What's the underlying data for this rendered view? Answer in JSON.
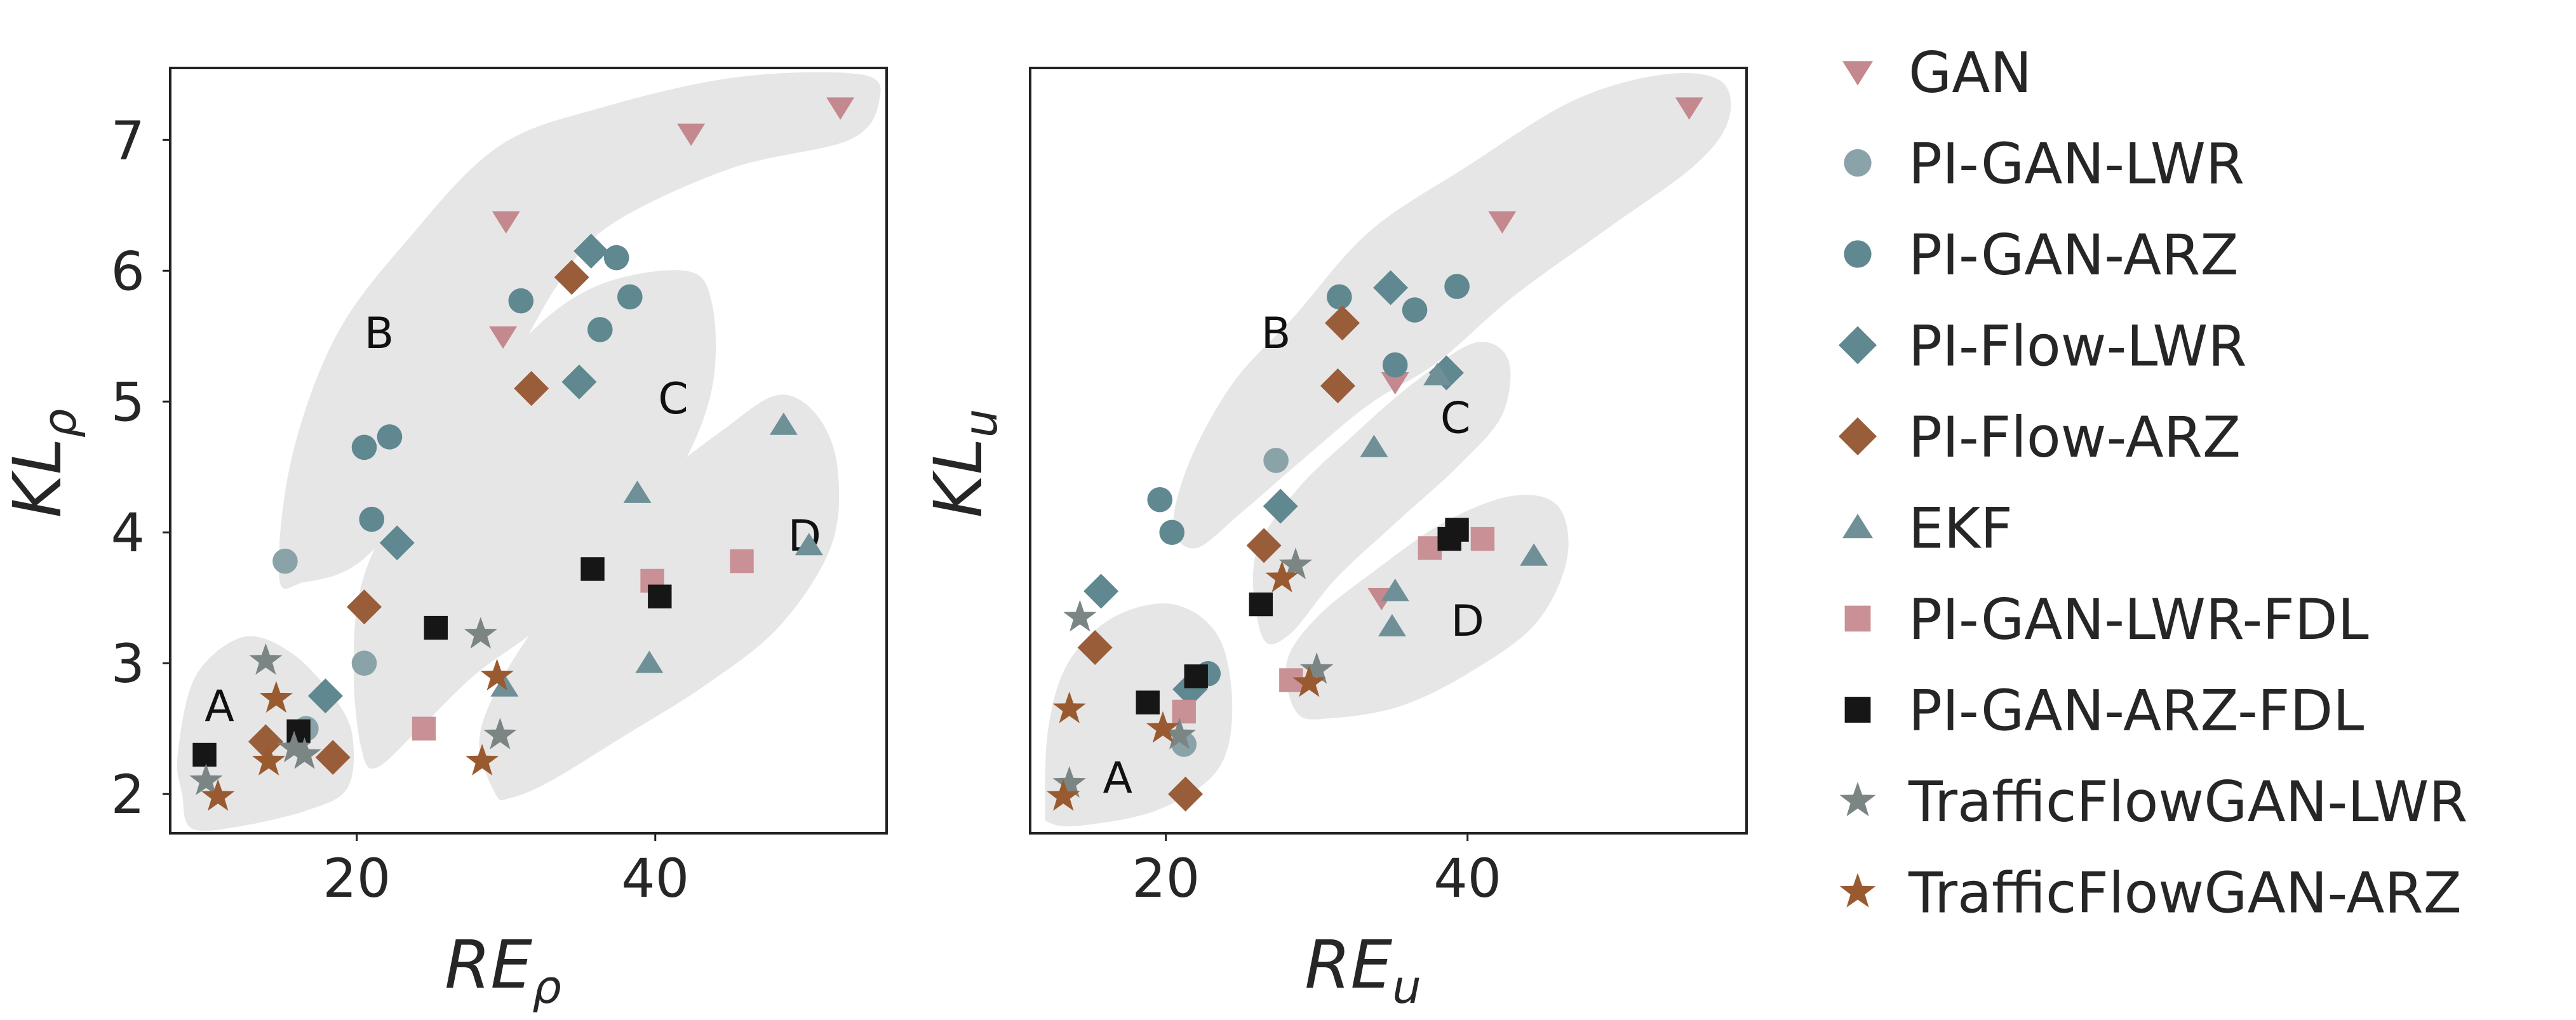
{
  "series_styles": [
    {
      "name": "GAN",
      "color": "#c4888f",
      "marker": "triangle-down"
    },
    {
      "name": "PI-GAN-LWR",
      "color": "#8aa3a8",
      "marker": "circle"
    },
    {
      "name": "PI-GAN-ARZ",
      "color": "#5f8890",
      "marker": "circle"
    },
    {
      "name": "PI-Flow-LWR",
      "color": "#5f8890",
      "marker": "diamond"
    },
    {
      "name": "PI-Flow-ARZ",
      "color": "#9a5d3a",
      "marker": "diamond"
    },
    {
      "name": "EKF",
      "color": "#6f9097",
      "marker": "triangle-up"
    },
    {
      "name": "PI-GAN-LWR-FDL",
      "color": "#c99096",
      "marker": "square"
    },
    {
      "name": "PI-GAN-ARZ-FDL",
      "color": "#161616",
      "marker": "square"
    },
    {
      "name": "TrafficFlowGAN-LWR",
      "color": "#7a8584",
      "marker": "star"
    },
    {
      "name": "TrafficFlowGAN-ARZ",
      "color": "#9a5a30",
      "marker": "star"
    }
  ],
  "legend": {
    "placement": "right",
    "entries": [
      "GAN",
      "PI-GAN-LWR",
      "PI-GAN-ARZ",
      "PI-Flow-LWR",
      "PI-Flow-ARZ",
      "EKF",
      "PI-GAN-LWR-FDL",
      "PI-GAN-ARZ-FDL",
      "TrafficFlowGAN-LWR",
      "TrafficFlowGAN-ARZ"
    ]
  },
  "chart_data": [
    {
      "type": "scatter",
      "xlabel": {
        "main": "RE",
        "sub": "ρ"
      },
      "ylabel": {
        "main": "KL",
        "sub": "ρ"
      },
      "xlim": [
        7.5,
        55.5
      ],
      "ylim": [
        1.7,
        7.55
      ],
      "xticks": [
        20,
        40
      ],
      "yticks": [
        2,
        3,
        4,
        5,
        6,
        7
      ],
      "grid": false,
      "cluster_labels": [
        {
          "text": "A",
          "x": 10.8,
          "y": 2.65
        },
        {
          "text": "B",
          "x": 21.5,
          "y": 5.5
        },
        {
          "text": "C",
          "x": 41.2,
          "y": 5.0
        },
        {
          "text": "D",
          "x": 50.0,
          "y": 3.95
        }
      ],
      "clusters": [
        {
          "name": "A",
          "points": [
            [
              8.3,
              2.0
            ],
            [
              8.0,
              2.3
            ],
            [
              9.2,
              2.9
            ],
            [
              12.4,
              3.2
            ],
            [
              15.6,
              3.08
            ],
            [
              18.4,
              2.75
            ],
            [
              19.7,
              2.45
            ],
            [
              19.4,
              2.05
            ],
            [
              16.8,
              1.88
            ],
            [
              12.0,
              1.75
            ],
            [
              8.9,
              1.74
            ]
          ]
        },
        {
          "name": "B",
          "points": [
            [
              14.8,
              3.65
            ],
            [
              15.6,
              4.55
            ],
            [
              18.6,
              5.5
            ],
            [
              23.5,
              6.25
            ],
            [
              29.5,
              6.95
            ],
            [
              36.5,
              7.25
            ],
            [
              45.5,
              7.48
            ],
            [
              53.8,
              7.5
            ],
            [
              55.0,
              7.3
            ],
            [
              53.0,
              7.0
            ],
            [
              45.0,
              6.78
            ],
            [
              37.0,
              6.35
            ],
            [
              33.5,
              5.9
            ],
            [
              30.2,
              5.25
            ],
            [
              26.0,
              4.55
            ],
            [
              22.2,
              4.0
            ],
            [
              19.5,
              3.72
            ],
            [
              16.5,
              3.62
            ]
          ]
        },
        {
          "name": "C",
          "points": [
            [
              20.3,
              2.35
            ],
            [
              19.8,
              2.9
            ],
            [
              20.2,
              3.55
            ],
            [
              22.3,
              4.1
            ],
            [
              26.5,
              4.7
            ],
            [
              31.0,
              5.45
            ],
            [
              36.0,
              5.88
            ],
            [
              42.0,
              6.0
            ],
            [
              43.8,
              5.75
            ],
            [
              43.8,
              5.1
            ],
            [
              41.5,
              4.45
            ],
            [
              37.3,
              3.85
            ],
            [
              32.5,
              3.3
            ],
            [
              28.0,
              2.92
            ],
            [
              24.2,
              2.5
            ],
            [
              21.3,
              2.2
            ]
          ]
        },
        {
          "name": "D",
          "points": [
            [
              29.3,
              2.0
            ],
            [
              28.2,
              2.4
            ],
            [
              29.6,
              2.85
            ],
            [
              32.7,
              3.4
            ],
            [
              36.8,
              3.98
            ],
            [
              40.5,
              4.42
            ],
            [
              44.5,
              4.78
            ],
            [
              48.2,
              5.05
            ],
            [
              50.8,
              4.9
            ],
            [
              52.2,
              4.5
            ],
            [
              51.8,
              3.9
            ],
            [
              48.3,
              3.28
            ],
            [
              43.2,
              2.82
            ],
            [
              38.0,
              2.45
            ],
            [
              33.0,
              2.1
            ],
            [
              30.3,
              1.97
            ]
          ]
        }
      ],
      "series": [
        {
          "name": "GAN",
          "points": [
            [
              30.0,
              6.38
            ],
            [
              42.4,
              7.05
            ],
            [
              52.4,
              7.25
            ],
            [
              29.8,
              5.5
            ]
          ]
        },
        {
          "name": "PI-GAN-LWR",
          "points": [
            [
              15.2,
              3.78
            ],
            [
              20.5,
              3.0
            ],
            [
              16.6,
              2.5
            ]
          ]
        },
        {
          "name": "PI-GAN-ARZ",
          "points": [
            [
              31.0,
              5.77
            ],
            [
              37.4,
              6.1
            ],
            [
              36.3,
              5.55
            ],
            [
              38.3,
              5.8
            ],
            [
              20.5,
              4.65
            ],
            [
              22.2,
              4.73
            ],
            [
              21.0,
              4.1
            ]
          ]
        },
        {
          "name": "PI-Flow-LWR",
          "points": [
            [
              35.7,
              6.15
            ],
            [
              34.9,
              5.15
            ],
            [
              22.7,
              3.92
            ],
            [
              17.9,
              2.75
            ]
          ]
        },
        {
          "name": "PI-Flow-ARZ",
          "points": [
            [
              34.4,
              5.95
            ],
            [
              31.7,
              5.1
            ],
            [
              20.5,
              3.43
            ],
            [
              13.9,
              2.4
            ],
            [
              18.4,
              2.28
            ]
          ]
        },
        {
          "name": "EKF",
          "points": [
            [
              48.6,
              4.82
            ],
            [
              50.3,
              3.9
            ],
            [
              38.8,
              4.3
            ],
            [
              39.6,
              3.0
            ],
            [
              29.9,
              2.82
            ]
          ]
        },
        {
          "name": "PI-GAN-LWR-FDL",
          "points": [
            [
              45.8,
              3.78
            ],
            [
              39.8,
              3.63
            ],
            [
              24.5,
              2.5
            ]
          ]
        },
        {
          "name": "PI-GAN-ARZ-FDL",
          "points": [
            [
              35.8,
              3.72
            ],
            [
              40.3,
              3.51
            ],
            [
              25.3,
              3.27
            ],
            [
              16.1,
              2.48
            ],
            [
              9.8,
              2.3
            ]
          ]
        },
        {
          "name": "TrafficFlowGAN-LWR",
          "points": [
            [
              13.9,
              3.02
            ],
            [
              28.3,
              3.22
            ],
            [
              29.6,
              2.45
            ],
            [
              15.8,
              2.35
            ],
            [
              16.5,
              2.3
            ],
            [
              9.9,
              2.1
            ]
          ]
        },
        {
          "name": "TrafficFlowGAN-ARZ",
          "points": [
            [
              14.6,
              2.73
            ],
            [
              14.1,
              2.25
            ],
            [
              29.4,
              2.9
            ],
            [
              28.4,
              2.25
            ],
            [
              10.7,
              1.98
            ]
          ]
        }
      ]
    },
    {
      "type": "scatter",
      "xlabel": {
        "main": "RE",
        "sub": "u"
      },
      "ylabel": {
        "main": "KL",
        "sub": "u"
      },
      "xlim": [
        11.0,
        58.5
      ],
      "ylim": [
        1.7,
        7.55
      ],
      "xticks": [
        20,
        40
      ],
      "yticks": [],
      "grid": false,
      "cluster_labels": [
        {
          "text": "A",
          "x": 16.8,
          "y": 2.1
        },
        {
          "text": "B",
          "x": 27.3,
          "y": 5.5
        },
        {
          "text": "C",
          "x": 39.2,
          "y": 4.85
        },
        {
          "text": "D",
          "x": 40.0,
          "y": 3.3
        }
      ],
      "clusters": [
        {
          "name": "A",
          "points": [
            [
              12.0,
              1.9
            ],
            [
              12.2,
              2.5
            ],
            [
              13.5,
              3.0
            ],
            [
              16.5,
              3.35
            ],
            [
              20.5,
              3.45
            ],
            [
              23.5,
              3.2
            ],
            [
              24.4,
              2.65
            ],
            [
              23.4,
              2.18
            ],
            [
              19.5,
              1.88
            ],
            [
              14.5,
              1.76
            ],
            [
              12.3,
              1.78
            ]
          ]
        },
        {
          "name": "B",
          "points": [
            [
              20.5,
              4.05
            ],
            [
              21.6,
              4.55
            ],
            [
              24.5,
              5.15
            ],
            [
              28.5,
              5.65
            ],
            [
              33.5,
              6.3
            ],
            [
              40.0,
              6.8
            ],
            [
              47.0,
              7.3
            ],
            [
              53.0,
              7.5
            ],
            [
              56.8,
              7.45
            ],
            [
              57.3,
              7.15
            ],
            [
              55.0,
              6.8
            ],
            [
              49.0,
              6.3
            ],
            [
              43.0,
              5.8
            ],
            [
              38.0,
              5.3
            ],
            [
              33.5,
              4.98
            ],
            [
              29.0,
              4.55
            ],
            [
              25.0,
              4.15
            ],
            [
              22.0,
              3.88
            ]
          ]
        },
        {
          "name": "C",
          "points": [
            [
              26.4,
              3.2
            ],
            [
              25.9,
              3.8
            ],
            [
              28.5,
              4.3
            ],
            [
              32.5,
              4.75
            ],
            [
              36.5,
              5.15
            ],
            [
              40.5,
              5.45
            ],
            [
              42.7,
              5.32
            ],
            [
              42.3,
              4.9
            ],
            [
              39.5,
              4.52
            ],
            [
              35.5,
              4.1
            ],
            [
              31.3,
              3.65
            ],
            [
              28.2,
              3.22
            ]
          ]
        },
        {
          "name": "D",
          "points": [
            [
              28.7,
              2.62
            ],
            [
              28.0,
              3.0
            ],
            [
              30.0,
              3.35
            ],
            [
              34.0,
              3.72
            ],
            [
              38.5,
              4.08
            ],
            [
              43.0,
              4.28
            ],
            [
              46.0,
              4.2
            ],
            [
              46.6,
              3.8
            ],
            [
              44.5,
              3.3
            ],
            [
              40.0,
              2.92
            ],
            [
              35.5,
              2.67
            ],
            [
              31.0,
              2.58
            ]
          ]
        }
      ],
      "series": [
        {
          "name": "GAN",
          "points": [
            [
              54.7,
              7.25
            ],
            [
              42.3,
              6.38
            ],
            [
              35.2,
              5.15
            ],
            [
              34.3,
              3.5
            ]
          ]
        },
        {
          "name": "PI-GAN-LWR",
          "points": [
            [
              27.3,
              4.55
            ],
            [
              21.2,
              2.38
            ]
          ]
        },
        {
          "name": "PI-GAN-ARZ",
          "points": [
            [
              31.5,
              5.8
            ],
            [
              36.5,
              5.7
            ],
            [
              39.3,
              5.88
            ],
            [
              35.2,
              5.28
            ],
            [
              19.6,
              4.25
            ],
            [
              20.4,
              4.0
            ],
            [
              22.8,
              2.92
            ]
          ]
        },
        {
          "name": "PI-Flow-LWR",
          "points": [
            [
              34.9,
              5.87
            ],
            [
              38.6,
              5.22
            ],
            [
              27.6,
              4.2
            ],
            [
              15.7,
              3.55
            ],
            [
              21.6,
              2.8
            ]
          ]
        },
        {
          "name": "PI-Flow-ARZ",
          "points": [
            [
              31.7,
              5.6
            ],
            [
              31.4,
              5.12
            ],
            [
              26.5,
              3.9
            ],
            [
              15.3,
              3.12
            ],
            [
              21.3,
              2.0
            ]
          ]
        },
        {
          "name": "EKF",
          "points": [
            [
              38.0,
              5.2
            ],
            [
              33.8,
              4.65
            ],
            [
              35.2,
              3.55
            ],
            [
              35.0,
              3.28
            ],
            [
              44.4,
              3.82
            ]
          ]
        },
        {
          "name": "PI-GAN-LWR-FDL",
          "points": [
            [
              37.5,
              3.88
            ],
            [
              41.0,
              3.95
            ],
            [
              28.3,
              2.87
            ],
            [
              21.2,
              2.63
            ]
          ]
        },
        {
          "name": "PI-GAN-ARZ-FDL",
          "points": [
            [
              38.8,
              3.95
            ],
            [
              39.3,
              4.02
            ],
            [
              26.3,
              3.45
            ],
            [
              18.8,
              2.7
            ],
            [
              22.0,
              2.9
            ]
          ]
        },
        {
          "name": "TrafficFlowGAN-LWR",
          "points": [
            [
              28.6,
              3.75
            ],
            [
              14.3,
              3.35
            ],
            [
              20.9,
              2.45
            ],
            [
              13.6,
              2.08
            ],
            [
              30.0,
              2.95
            ]
          ]
        },
        {
          "name": "TrafficFlowGAN-ARZ",
          "points": [
            [
              27.7,
              3.65
            ],
            [
              13.6,
              2.65
            ],
            [
              19.8,
              2.5
            ],
            [
              13.2,
              1.98
            ],
            [
              29.5,
              2.85
            ]
          ]
        }
      ]
    }
  ]
}
